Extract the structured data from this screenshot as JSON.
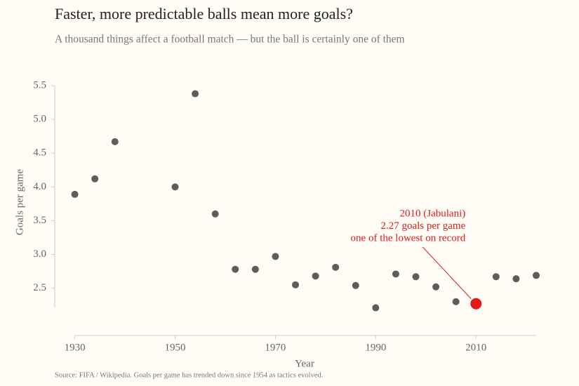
{
  "chart_data": {
    "type": "scatter",
    "title": "Faster, more predictable balls mean more goals?",
    "subtitle": "A thousand things affect a football match — but the ball is certainly one of them",
    "x_label": "Year",
    "y_label": "Goals per game",
    "x": [
      1930,
      1934,
      1938,
      1950,
      1954,
      1958,
      1962,
      1966,
      1970,
      1974,
      1978,
      1982,
      1986,
      1990,
      1994,
      1998,
      2002,
      2006,
      2010,
      2014,
      2018,
      2022
    ],
    "values": [
      3.89,
      4.12,
      4.67,
      4.0,
      5.38,
      3.6,
      2.78,
      2.78,
      2.97,
      2.55,
      2.68,
      2.81,
      2.54,
      2.21,
      2.71,
      2.67,
      2.52,
      2.3,
      2.27,
      2.67,
      2.64,
      2.69
    ],
    "color": "#5f5c5c",
    "colors": [
      "#5f5c5c",
      "#5f5c5c",
      "#5f5c5c",
      "#5f5c5c",
      "#5f5c5c",
      "#5f5c5c",
      "#5f5c5c",
      "#5f5c5c",
      "#5f5c5c",
      "#5f5c5c",
      "#5f5c5c",
      "#5f5c5c",
      "#5f5c5c",
      "#5f5c5c",
      "#5f5c5c",
      "#5f5c5c",
      "#5f5c5c",
      "#5f5c5c",
      "#e3191c",
      "#5f5c5c",
      "#5f5c5c",
      "#5f5c5c"
    ],
    "annotation": [
      "2010 (Jabulani)",
      "2.27 goals per game",
      "one of the lowest on record"
    ],
    "xlim": [
      1926,
      2022
    ],
    "xticks": [
      1930,
      1950,
      1970,
      1990,
      2010
    ],
    "ylim": [
      1.8,
      5.5
    ],
    "yticks": [
      {
        "value": 2.5,
        "label": "2.5"
      },
      {
        "value": 3,
        "label": "3.0"
      },
      {
        "value": 3.5,
        "label": "3.5"
      },
      {
        "value": 4,
        "label": "4.0"
      },
      {
        "value": 4.5,
        "label": "4.5"
      },
      {
        "value": 5,
        "label": "5.0"
      },
      {
        "value": 5.5,
        "label": "5.5"
      }
    ],
    "source": "Source: FIFA / Wikipedia. Goals per game has trended down since 1954 as tactics evolved."
  }
}
